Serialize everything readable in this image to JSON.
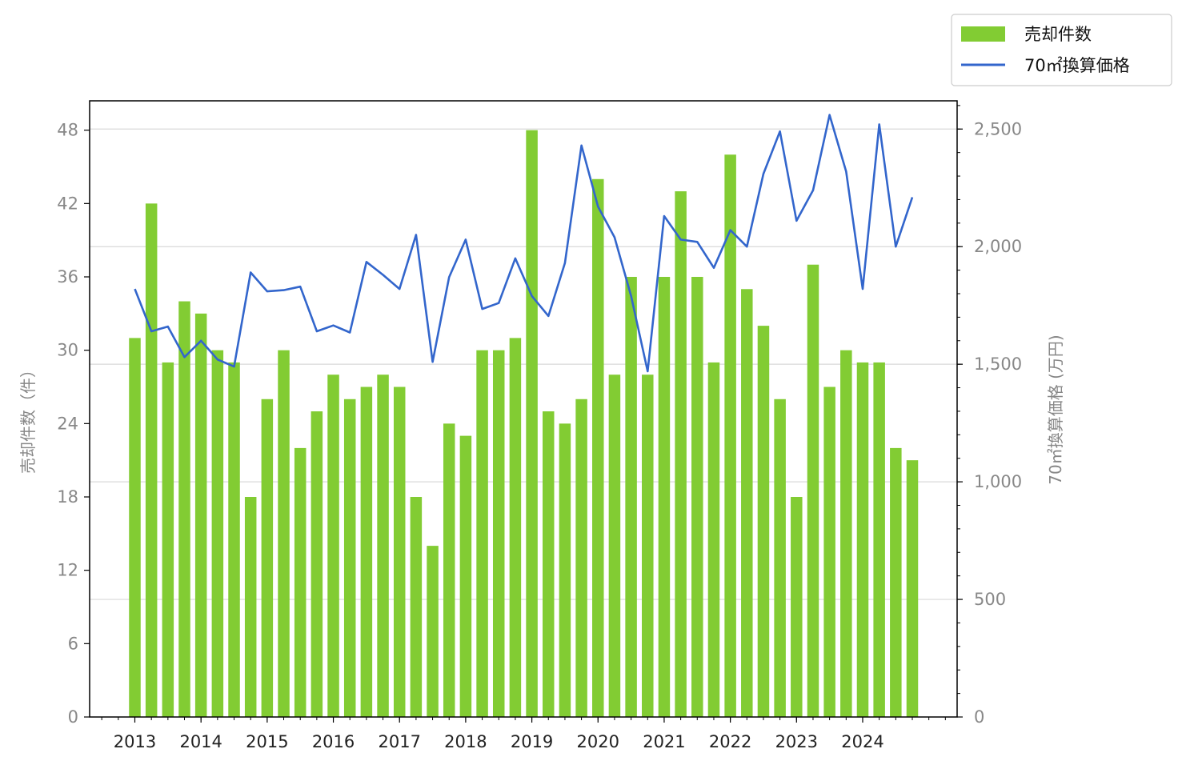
{
  "chart_data": {
    "type": "bar",
    "x_tick_labels": [
      "2013",
      "2014",
      "2015",
      "2016",
      "2017",
      "2018",
      "2019",
      "2020",
      "2021",
      "2022",
      "2023",
      "2024"
    ],
    "series": [
      {
        "name": "売却件数",
        "type": "bar",
        "axis": "left",
        "color": "#82cc33",
        "values": [
          31,
          42,
          29,
          34,
          33,
          30,
          29,
          18,
          26,
          30,
          22,
          25,
          28,
          26,
          27,
          28,
          27,
          18,
          14,
          24,
          23,
          30,
          30,
          31,
          48,
          25,
          24,
          26,
          44,
          28,
          36,
          28,
          36,
          43,
          36,
          29,
          46,
          35,
          32,
          26,
          18,
          37,
          27,
          30,
          29,
          29,
          22,
          21
        ]
      },
      {
        "name": "70㎡換算価格",
        "type": "line",
        "axis": "right",
        "color": "#3366cc",
        "values": [
          1820,
          1640,
          1660,
          1530,
          1600,
          1520,
          1490,
          1890,
          1810,
          1815,
          1830,
          1640,
          1665,
          1635,
          1935,
          1880,
          1820,
          2050,
          1510,
          1870,
          2030,
          1735,
          1760,
          1950,
          1790,
          1705,
          1930,
          2430,
          2170,
          2040,
          1790,
          1470,
          2130,
          2030,
          2020,
          1910,
          2070,
          2000,
          2310,
          2490,
          2110,
          2240,
          2560,
          2320,
          1820,
          2520,
          2000,
          2210
        ]
      }
    ],
    "y_left": {
      "label": "売却件数（件）",
      "lim": [
        0,
        50.4
      ],
      "ticks": [
        0,
        6,
        12,
        18,
        24,
        30,
        36,
        42,
        48
      ]
    },
    "y_right": {
      "label": "70㎡換算価格 (万円)",
      "lim": [
        0,
        2620
      ],
      "ticks": [
        0,
        500,
        1000,
        1500,
        2000,
        2500
      ],
      "tick_labels": [
        "0",
        "500",
        "1,000",
        "1,500",
        "2,000",
        "2,500"
      ]
    },
    "grid": "horizontal, right axis",
    "legend": "top-right, outside plot"
  }
}
